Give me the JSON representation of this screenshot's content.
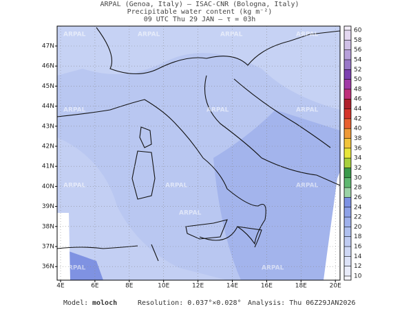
{
  "header": {
    "line1": "ARPAL (Genoa, Italy)  —  ISAC-CNR (Bologna, Italy)",
    "line2": "Precipitable water content (kg m⁻²)",
    "line3": "09 UTC Thu 29 JAN  —  τ = 03h"
  },
  "map": {
    "watermark": "ARPAL",
    "lat_labels": [
      {
        "value": 47,
        "label": "47N"
      },
      {
        "value": 46,
        "label": "46N"
      },
      {
        "value": 45,
        "label": "45N"
      },
      {
        "value": 44,
        "label": "44N"
      },
      {
        "value": 43,
        "label": "43N"
      },
      {
        "value": 42,
        "label": "42N"
      },
      {
        "value": 41,
        "label": "41N"
      },
      {
        "value": 40,
        "label": "40N"
      },
      {
        "value": 39,
        "label": "39N"
      },
      {
        "value": 38,
        "label": "38N"
      },
      {
        "value": 37,
        "label": "37N"
      },
      {
        "value": 36,
        "label": "36N"
      }
    ],
    "lon_labels": [
      {
        "value": 4,
        "label": "4E"
      },
      {
        "value": 6,
        "label": "6E"
      },
      {
        "value": 8,
        "label": "8E"
      },
      {
        "value": 10,
        "label": "10E"
      },
      {
        "value": 12,
        "label": "12E"
      },
      {
        "value": 14,
        "label": "14E"
      },
      {
        "value": 16,
        "label": "16E"
      },
      {
        "value": 18,
        "label": "18E"
      },
      {
        "value": 20,
        "label": "20E"
      }
    ]
  },
  "colorbar": {
    "ticks": [
      10,
      12,
      14,
      16,
      18,
      20,
      22,
      24,
      26,
      28,
      30,
      32,
      34,
      36,
      38,
      40,
      42,
      44,
      46,
      48,
      50,
      52,
      54,
      56,
      58,
      60
    ],
    "colors": [
      "#f4f4fb",
      "#e9ecfa",
      "#dde3f8",
      "#cfd8f5",
      "#c0ccf2",
      "#b0c0ef",
      "#9fb1ec",
      "#8ea2e8",
      "#7d92e4",
      "#9bd3a6",
      "#5fb870",
      "#3a9a4a",
      "#a8d03c",
      "#e8e63a",
      "#f2c43a",
      "#ef9a36",
      "#e8602f",
      "#d43328",
      "#b0202a",
      "#c0307a",
      "#a23aa6",
      "#7d40b0",
      "#9a78c8",
      "#b8a0da",
      "#d0c0e6",
      "#e4d8f0",
      "#f2ecf8"
    ]
  },
  "footer": {
    "model_label": "Model:",
    "model": "moloch",
    "resolution": "Resolution: 0.037°×0.028°",
    "analysis": "Analysis: Thu 06Z29JAN2026"
  }
}
